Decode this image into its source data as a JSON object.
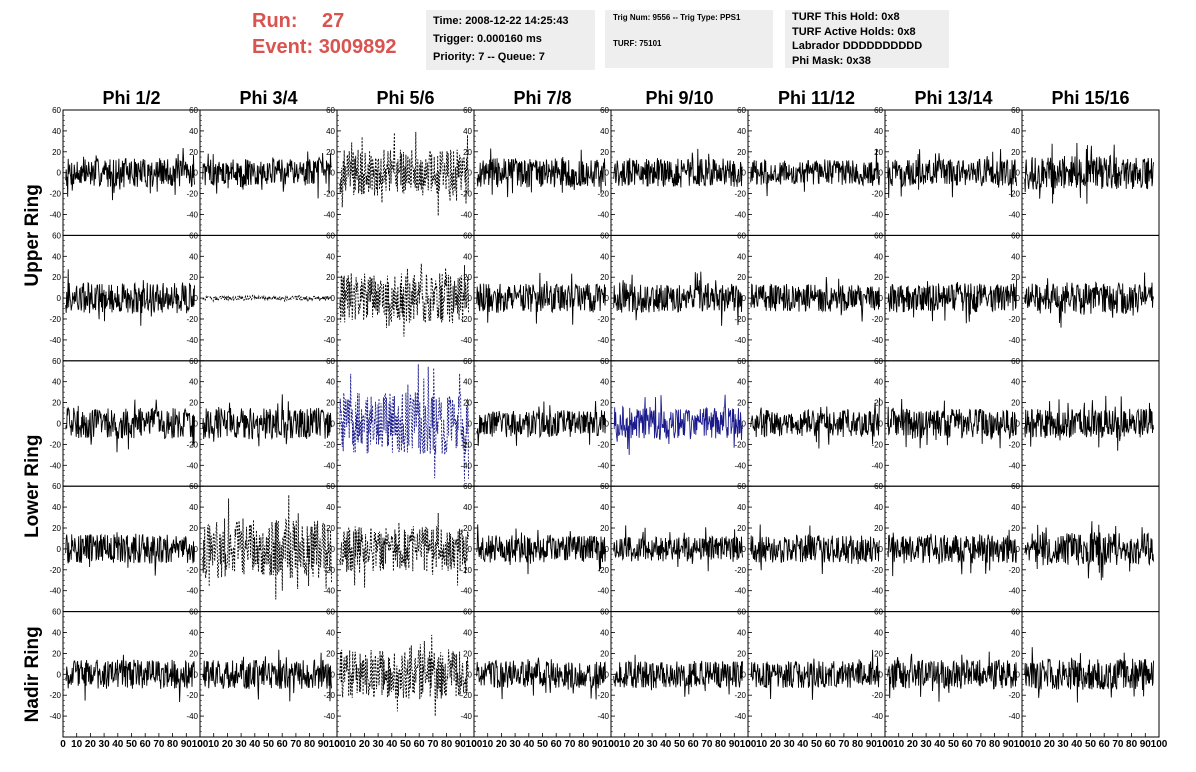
{
  "header": {
    "run_label": "Run:",
    "run_value": "27",
    "event_label": "Event:",
    "event_value": "3009892",
    "time_line": "Time: 2008-12-22 14:25:43",
    "trigger_line": "Trigger: 0.000160 ms",
    "priority_line": "Priority: 7 -- Queue: 7",
    "trig_line": "Trig Num: 9556 -- Trig Type: PPS1",
    "turf_line": "TURF: 75101",
    "turf_hold_line": "TURF This Hold: 0x8",
    "turf_active_line": "TURF Active Holds: 0x8",
    "labrador_line": "Labrador DDDDDDDDDD",
    "phi_mask_line": "Phi Mask: 0x38"
  },
  "colors": {
    "header_red": "#d9534f",
    "box_bg": "#eeeeee",
    "trace_black": "#000000",
    "trace_blue": "#1a1a8c"
  },
  "chart_data": {
    "type": "line",
    "columns": [
      "Phi 1/2",
      "Phi 3/4",
      "Phi 5/6",
      "Phi 7/8",
      "Phi 9/10",
      "Phi 11/12",
      "Phi 13/14",
      "Phi 15/16"
    ],
    "rows": [
      "Upper Ring",
      "Lower Ring",
      "Nadir Ring"
    ],
    "ylim": [
      -60,
      60
    ],
    "yticks": [
      -40,
      -20,
      0,
      20,
      40,
      60
    ],
    "xlim": [
      0,
      100
    ],
    "xticks": [
      0,
      10,
      20,
      30,
      40,
      50,
      60,
      70,
      80,
      90,
      100
    ],
    "panels": [
      {
        "row": 0,
        "col": 0,
        "amp": 14,
        "style": "solid",
        "color": "#000000"
      },
      {
        "row": 0,
        "col": 1,
        "amp": 13,
        "style": "solid",
        "color": "#000000"
      },
      {
        "row": 0,
        "col": 2,
        "amp": 22,
        "style": "dashed",
        "color": "#000000"
      },
      {
        "row": 0,
        "col": 3,
        "amp": 14,
        "style": "solid",
        "color": "#000000"
      },
      {
        "row": 0,
        "col": 4,
        "amp": 14,
        "style": "solid",
        "color": "#000000"
      },
      {
        "row": 0,
        "col": 5,
        "amp": 12,
        "style": "solid",
        "color": "#000000"
      },
      {
        "row": 0,
        "col": 6,
        "amp": 13,
        "style": "solid",
        "color": "#000000"
      },
      {
        "row": 0,
        "col": 7,
        "amp": 16,
        "style": "solid",
        "color": "#000000"
      },
      {
        "row": 1,
        "col": 0,
        "amp": 15,
        "style": "solid",
        "color": "#000000"
      },
      {
        "row": 1,
        "col": 1,
        "amp": 2,
        "style": "dashed",
        "color": "#000000"
      },
      {
        "row": 1,
        "col": 2,
        "amp": 24,
        "style": "dashed",
        "color": "#000000"
      },
      {
        "row": 1,
        "col": 3,
        "amp": 14,
        "style": "solid",
        "color": "#000000"
      },
      {
        "row": 1,
        "col": 4,
        "amp": 14,
        "style": "solid",
        "color": "#000000"
      },
      {
        "row": 1,
        "col": 5,
        "amp": 13,
        "style": "solid",
        "color": "#000000"
      },
      {
        "row": 1,
        "col": 6,
        "amp": 14,
        "style": "solid",
        "color": "#000000"
      },
      {
        "row": 1,
        "col": 7,
        "amp": 15,
        "style": "solid",
        "color": "#000000"
      },
      {
        "row": 2,
        "col": 0,
        "amp": 15,
        "style": "solid",
        "color": "#000000"
      },
      {
        "row": 2,
        "col": 1,
        "amp": 15,
        "style": "solid",
        "color": "#000000"
      },
      {
        "row": 2,
        "col": 2,
        "amp": 30,
        "style": "dashed",
        "color": "#1a1a8c"
      },
      {
        "row": 2,
        "col": 3,
        "amp": 13,
        "style": "solid",
        "color": "#000000"
      },
      {
        "row": 2,
        "col": 4,
        "amp": 16,
        "style": "solid",
        "color": "#1a1a8c"
      },
      {
        "row": 2,
        "col": 5,
        "amp": 13,
        "style": "solid",
        "color": "#000000"
      },
      {
        "row": 2,
        "col": 6,
        "amp": 14,
        "style": "solid",
        "color": "#000000"
      },
      {
        "row": 2,
        "col": 7,
        "amp": 14,
        "style": "solid",
        "color": "#000000"
      },
      {
        "row": 3,
        "col": 0,
        "amp": 14,
        "style": "solid",
        "color": "#000000"
      },
      {
        "row": 3,
        "col": 1,
        "amp": 28,
        "style": "dashed",
        "color": "#000000"
      },
      {
        "row": 3,
        "col": 2,
        "amp": 22,
        "style": "dashed",
        "color": "#000000"
      },
      {
        "row": 3,
        "col": 3,
        "amp": 13,
        "style": "solid",
        "color": "#000000"
      },
      {
        "row": 3,
        "col": 4,
        "amp": 12,
        "style": "solid",
        "color": "#000000"
      },
      {
        "row": 3,
        "col": 5,
        "amp": 13,
        "style": "solid",
        "color": "#000000"
      },
      {
        "row": 3,
        "col": 6,
        "amp": 14,
        "style": "solid",
        "color": "#000000"
      },
      {
        "row": 3,
        "col": 7,
        "amp": 16,
        "style": "solid",
        "color": "#000000"
      },
      {
        "row": 4,
        "col": 0,
        "amp": 14,
        "style": "solid",
        "color": "#000000"
      },
      {
        "row": 4,
        "col": 1,
        "amp": 14,
        "style": "solid",
        "color": "#000000"
      },
      {
        "row": 4,
        "col": 2,
        "amp": 24,
        "style": "dashed",
        "color": "#000000"
      },
      {
        "row": 4,
        "col": 3,
        "amp": 13,
        "style": "solid",
        "color": "#000000"
      },
      {
        "row": 4,
        "col": 4,
        "amp": 13,
        "style": "solid",
        "color": "#000000"
      },
      {
        "row": 4,
        "col": 5,
        "amp": 13,
        "style": "solid",
        "color": "#000000"
      },
      {
        "row": 4,
        "col": 6,
        "amp": 14,
        "style": "solid",
        "color": "#000000"
      },
      {
        "row": 4,
        "col": 7,
        "amp": 15,
        "style": "solid",
        "color": "#000000"
      }
    ]
  }
}
